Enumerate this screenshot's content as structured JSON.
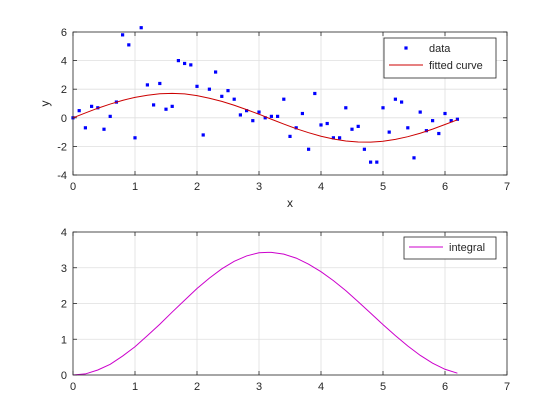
{
  "chart_data": [
    {
      "type": "scatter",
      "title": "",
      "xlabel": "x",
      "ylabel": "y",
      "xlim": [
        0,
        7
      ],
      "ylim": [
        -4,
        6
      ],
      "xticks": [
        0,
        1,
        2,
        3,
        4,
        5,
        6,
        7
      ],
      "yticks": [
        -4,
        -2,
        0,
        2,
        4,
        6
      ],
      "grid": true,
      "legend": "top-right",
      "series": [
        {
          "name": "data",
          "kind": "markers",
          "color": "#0000ff",
          "x": [
            0.0,
            0.1,
            0.2,
            0.3,
            0.4,
            0.5,
            0.6,
            0.7,
            0.8,
            0.9,
            1.0,
            1.1,
            1.2,
            1.3,
            1.4,
            1.5,
            1.6,
            1.7,
            1.8,
            1.9,
            2.0,
            2.1,
            2.2,
            2.3,
            2.4,
            2.5,
            2.6,
            2.7,
            2.8,
            2.9,
            3.0,
            3.1,
            3.2,
            3.3,
            3.4,
            3.5,
            3.6,
            3.7,
            3.8,
            3.9,
            4.0,
            4.1,
            4.2,
            4.3,
            4.4,
            4.5,
            4.6,
            4.7,
            4.8,
            4.9,
            5.0,
            5.1,
            5.2,
            5.3,
            5.4,
            5.5,
            5.6,
            5.7,
            5.8,
            5.9,
            6.0,
            6.1,
            6.2
          ],
          "y": [
            0.0,
            0.5,
            -0.7,
            0.8,
            0.7,
            -0.8,
            0.1,
            1.1,
            5.8,
            5.1,
            -1.4,
            6.3,
            2.3,
            0.9,
            2.4,
            0.6,
            0.8,
            4.0,
            3.8,
            3.7,
            2.2,
            -1.2,
            2.0,
            3.2,
            1.5,
            1.9,
            1.3,
            0.2,
            0.5,
            -0.2,
            0.4,
            0.0,
            0.1,
            0.1,
            1.3,
            -1.3,
            -0.7,
            0.3,
            -2.2,
            1.7,
            -0.5,
            -0.4,
            -1.4,
            -1.4,
            0.7,
            -0.8,
            -0.6,
            -2.2,
            -3.1,
            -3.1,
            0.7,
            -1.0,
            1.3,
            1.1,
            -0.7,
            -2.8,
            0.4,
            -0.9,
            -0.2,
            -1.1,
            0.3,
            -0.2,
            -0.1
          ]
        },
        {
          "name": "fitted curve",
          "kind": "line",
          "color": "#cc0000",
          "x": [
            0.0,
            0.2,
            0.4,
            0.6,
            0.8,
            1.0,
            1.2,
            1.4,
            1.6,
            1.8,
            2.0,
            2.2,
            2.4,
            2.6,
            2.8,
            3.0,
            3.2,
            3.4,
            3.6,
            3.8,
            4.0,
            4.2,
            4.4,
            4.6,
            4.8,
            5.0,
            5.2,
            5.4,
            5.6,
            5.8,
            6.0,
            6.2
          ],
          "y": [
            0.0,
            0.34,
            0.67,
            0.96,
            1.22,
            1.43,
            1.58,
            1.68,
            1.71,
            1.67,
            1.55,
            1.37,
            1.15,
            0.88,
            0.57,
            0.25,
            -0.1,
            -0.44,
            -0.76,
            -1.04,
            -1.29,
            -1.48,
            -1.62,
            -1.69,
            -1.7,
            -1.64,
            -1.51,
            -1.32,
            -1.08,
            -0.79,
            -0.47,
            -0.14
          ]
        }
      ]
    },
    {
      "type": "line",
      "title": "",
      "xlabel": "",
      "ylabel": "",
      "xlim": [
        0,
        7
      ],
      "ylim": [
        0,
        4
      ],
      "xticks": [
        0,
        1,
        2,
        3,
        4,
        5,
        6,
        7
      ],
      "yticks": [
        0,
        1,
        2,
        3,
        4
      ],
      "grid": true,
      "legend": "top-right",
      "series": [
        {
          "name": "integral",
          "kind": "line",
          "color": "#cc00cc",
          "x": [
            0.0,
            0.2,
            0.4,
            0.6,
            0.8,
            1.0,
            1.2,
            1.4,
            1.6,
            1.8,
            2.0,
            2.2,
            2.4,
            2.6,
            2.8,
            3.0,
            3.14,
            3.2,
            3.4,
            3.6,
            3.8,
            4.0,
            4.2,
            4.4,
            4.6,
            4.8,
            5.0,
            5.2,
            5.4,
            5.6,
            5.8,
            6.0,
            6.2
          ],
          "y": [
            0.0,
            0.03,
            0.14,
            0.3,
            0.53,
            0.79,
            1.1,
            1.42,
            1.76,
            2.09,
            2.42,
            2.71,
            2.97,
            3.18,
            3.33,
            3.42,
            3.43,
            3.43,
            3.38,
            3.27,
            3.1,
            2.89,
            2.64,
            2.36,
            2.05,
            1.73,
            1.41,
            1.1,
            0.81,
            0.55,
            0.33,
            0.16,
            0.05
          ]
        }
      ]
    }
  ]
}
